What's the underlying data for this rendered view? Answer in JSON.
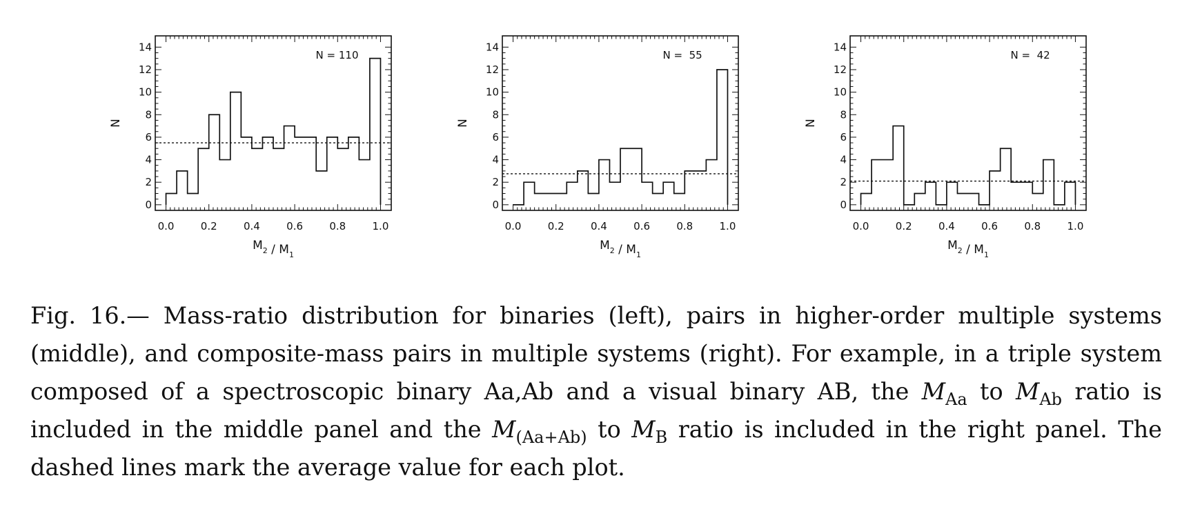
{
  "chart_data": [
    {
      "type": "bar",
      "style": "step-histogram",
      "annotation": "N = 110",
      "xlabel": "M2 / M1",
      "ylabel": "N",
      "xlim": [
        -0.05,
        1.05
      ],
      "ylim": [
        -0.5,
        15
      ],
      "xticks": [
        "0.0",
        "0.2",
        "0.4",
        "0.6",
        "0.8",
        "1.0"
      ],
      "yticks": [
        "0",
        "2",
        "4",
        "6",
        "8",
        "10",
        "12",
        "14"
      ],
      "bin_width": 0.05,
      "bin_starts": [
        0.0,
        0.05,
        0.1,
        0.15,
        0.2,
        0.25,
        0.3,
        0.35,
        0.4,
        0.45,
        0.5,
        0.55,
        0.6,
        0.65,
        0.7,
        0.75,
        0.8,
        0.85,
        0.9,
        0.95
      ],
      "values": [
        1,
        3,
        1,
        5,
        8,
        4,
        10,
        6,
        5,
        6,
        5,
        7,
        6,
        6,
        3,
        6,
        5,
        6,
        4,
        13
      ],
      "mean_line": 5.5,
      "grid": false
    },
    {
      "type": "bar",
      "style": "step-histogram",
      "annotation": "N =  55",
      "xlabel": "M2 / M1",
      "ylabel": "N",
      "xlim": [
        -0.05,
        1.05
      ],
      "ylim": [
        -0.5,
        15
      ],
      "xticks": [
        "0.0",
        "0.2",
        "0.4",
        "0.6",
        "0.8",
        "1.0"
      ],
      "yticks": [
        "0",
        "2",
        "4",
        "6",
        "8",
        "10",
        "12",
        "14"
      ],
      "bin_width": 0.05,
      "bin_starts": [
        0.0,
        0.05,
        0.1,
        0.15,
        0.2,
        0.25,
        0.3,
        0.35,
        0.4,
        0.45,
        0.5,
        0.55,
        0.6,
        0.65,
        0.7,
        0.75,
        0.8,
        0.85,
        0.9,
        0.95
      ],
      "values": [
        0,
        2,
        1,
        1,
        1,
        2,
        3,
        1,
        4,
        2,
        5,
        5,
        2,
        1,
        2,
        1,
        3,
        3,
        4,
        12
      ],
      "mean_line": 2.75,
      "grid": false
    },
    {
      "type": "bar",
      "style": "step-histogram",
      "annotation": "N =  42",
      "xlabel": "M2 / M1",
      "ylabel": "N",
      "xlim": [
        -0.05,
        1.05
      ],
      "ylim": [
        -0.5,
        15
      ],
      "xticks": [
        "0.0",
        "0.2",
        "0.4",
        "0.6",
        "0.8",
        "1.0"
      ],
      "yticks": [
        "0",
        "2",
        "4",
        "6",
        "8",
        "10",
        "12",
        "14"
      ],
      "bin_width": 0.05,
      "bin_starts": [
        0.0,
        0.05,
        0.1,
        0.15,
        0.2,
        0.25,
        0.3,
        0.35,
        0.4,
        0.45,
        0.5,
        0.55,
        0.6,
        0.65,
        0.7,
        0.75,
        0.8,
        0.85,
        0.9,
        0.95
      ],
      "values": [
        1,
        4,
        4,
        7,
        0,
        1,
        2,
        0,
        2,
        1,
        1,
        0,
        3,
        5,
        2,
        2,
        1,
        4,
        0,
        2
      ],
      "mean_line": 2.1,
      "grid": false
    }
  ],
  "caption": {
    "p1": "Fig. 16.— Mass-ratio distribution for binaries (left), pairs in higher-order multiple systems (middle), and composite-mass pairs in multiple systems (right). For example, in a triple system composed of a spectroscopic binary Aa,Ab and a visual binary AB, the ",
    "m1": "M",
    "s1": "Aa",
    "p2": " to ",
    "m2": "M",
    "s2": "Ab",
    "p3": " ratio is included in the middle panel and the ",
    "m3": "M",
    "s3": "(Aa+Ab)",
    "p4": " to ",
    "m4": "M",
    "s4": "B",
    "p5": " ratio is included in the right panel. The dashed lines mark the average value for each plot."
  }
}
